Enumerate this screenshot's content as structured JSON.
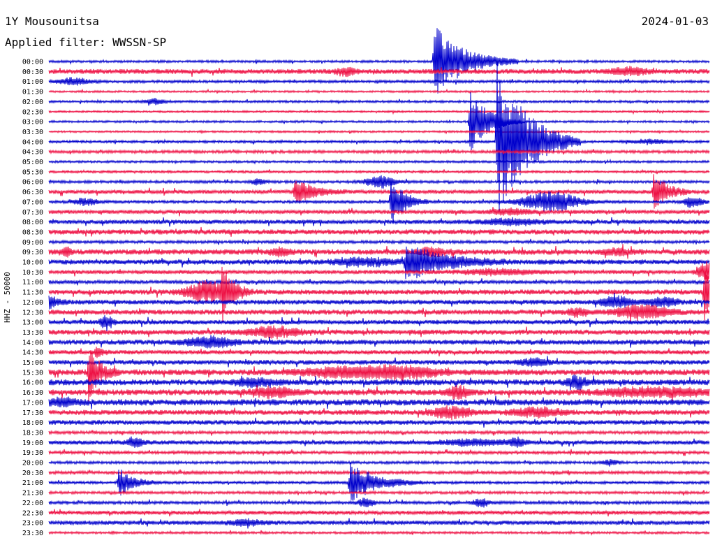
{
  "header": {
    "station": "1Y Mousounitsa",
    "date": "2024-01-03",
    "filter": "Applied filter: WWSSN-SP"
  },
  "chart_data": {
    "type": "line",
    "ylabel": "HHZ - 50000",
    "x_minutes_per_row": 30,
    "row_labels": [
      "00:00",
      "00:30",
      "01:00",
      "01:30",
      "02:00",
      "02:30",
      "03:00",
      "03:30",
      "04:00",
      "04:30",
      "05:00",
      "05:30",
      "06:00",
      "06:30",
      "07:00",
      "07:30",
      "08:00",
      "08:30",
      "09:00",
      "09:30",
      "10:00",
      "10:30",
      "11:00",
      "11:30",
      "12:00",
      "12:30",
      "13:00",
      "13:30",
      "14:00",
      "14:30",
      "15:00",
      "15:30",
      "16:00",
      "16:30",
      "17:00",
      "17:30",
      "18:00",
      "18:30",
      "19:00",
      "19:30",
      "20:00",
      "20:30",
      "21:00",
      "21:30",
      "22:00",
      "22:30",
      "23:00",
      "23:30"
    ],
    "colors": [
      "#0000cc",
      "#ee1144"
    ],
    "noise": [
      1.2,
      2.5,
      1.4,
      1.0,
      1.2,
      1.0,
      1.1,
      1.0,
      1.3,
      1.5,
      1.2,
      1.2,
      1.4,
      2.0,
      1.4,
      2.0,
      2.2,
      2.6,
      1.5,
      2.8,
      2.6,
      2.0,
      1.8,
      2.6,
      2.4,
      2.6,
      2.4,
      2.6,
      2.6,
      2.2,
      2.4,
      3.0,
      3.0,
      3.0,
      3.2,
      2.6,
      2.4,
      1.6,
      2.2,
      1.6,
      1.4,
      1.6,
      1.4,
      1.4,
      1.6,
      2.0,
      2.2,
      1.2
    ],
    "events": [
      {
        "row": 0,
        "pos": 0.583,
        "amp": 55,
        "dur": 40,
        "kind": "quake"
      },
      {
        "row": 1,
        "pos": 0.45,
        "amp": 6,
        "dur": 10,
        "kind": "burst"
      },
      {
        "row": 1,
        "pos": 0.88,
        "amp": 5,
        "dur": 20,
        "kind": "burst"
      },
      {
        "row": 2,
        "pos": 0.038,
        "amp": 5,
        "dur": 15,
        "kind": "burst"
      },
      {
        "row": 4,
        "pos": 0.16,
        "amp": 4,
        "dur": 10,
        "kind": "burst"
      },
      {
        "row": 6,
        "pos": 0.637,
        "amp": 45,
        "dur": 25,
        "kind": "quake"
      },
      {
        "row": 8,
        "pos": 0.678,
        "amp": 120,
        "dur": 40,
        "kind": "quake"
      },
      {
        "row": 8,
        "pos": 0.91,
        "amp": 3,
        "dur": 20,
        "kind": "burst"
      },
      {
        "row": 12,
        "pos": 0.317,
        "amp": 5,
        "dur": 6,
        "kind": "burst"
      },
      {
        "row": 12,
        "pos": 0.502,
        "amp": 8,
        "dur": 15,
        "kind": "burst"
      },
      {
        "row": 13,
        "pos": 0.372,
        "amp": 20,
        "dur": 25,
        "kind": "quake"
      },
      {
        "row": 13,
        "pos": 0.915,
        "amp": 30,
        "dur": 18,
        "kind": "quake"
      },
      {
        "row": 14,
        "pos": 0.055,
        "amp": 5,
        "dur": 12,
        "kind": "burst"
      },
      {
        "row": 14,
        "pos": 0.517,
        "amp": 40,
        "dur": 18,
        "kind": "quake"
      },
      {
        "row": 14,
        "pos": 0.76,
        "amp": 14,
        "dur": 30,
        "kind": "burst"
      },
      {
        "row": 14,
        "pos": 0.975,
        "amp": 8,
        "dur": 10,
        "kind": "burst"
      },
      {
        "row": 15,
        "pos": 0.7,
        "amp": 4,
        "dur": 20,
        "kind": "burst"
      },
      {
        "row": 16,
        "pos": 0.7,
        "amp": 4,
        "dur": 30,
        "kind": "burst"
      },
      {
        "row": 19,
        "pos": 0.025,
        "amp": 6,
        "dur": 6,
        "kind": "burst"
      },
      {
        "row": 19,
        "pos": 0.35,
        "amp": 5,
        "dur": 10,
        "kind": "burst"
      },
      {
        "row": 19,
        "pos": 0.58,
        "amp": 5,
        "dur": 15,
        "kind": "burst"
      },
      {
        "row": 19,
        "pos": 0.86,
        "amp": 4,
        "dur": 15,
        "kind": "burst"
      },
      {
        "row": 20,
        "pos": 0.54,
        "amp": 28,
        "dur": 50,
        "kind": "quake"
      },
      {
        "row": 20,
        "pos": 0.48,
        "amp": 5,
        "dur": 30,
        "kind": "burst"
      },
      {
        "row": 21,
        "pos": 0.68,
        "amp": 4,
        "dur": 40,
        "kind": "burst"
      },
      {
        "row": 21,
        "pos": 0.995,
        "amp": 14,
        "dur": 8,
        "kind": "burst"
      },
      {
        "row": 23,
        "pos": 0.24,
        "amp": 15,
        "dur": 20,
        "kind": "burst"
      },
      {
        "row": 23,
        "pos": 0.262,
        "amp": 40,
        "dur": 15,
        "kind": "quake"
      },
      {
        "row": 23,
        "pos": 0.992,
        "amp": 45,
        "dur": 10,
        "kind": "quake"
      },
      {
        "row": 24,
        "pos": 0.0,
        "amp": 12,
        "dur": 10,
        "kind": "quake"
      },
      {
        "row": 24,
        "pos": 0.86,
        "amp": 8,
        "dur": 15,
        "kind": "burst"
      },
      {
        "row": 24,
        "pos": 0.93,
        "amp": 6,
        "dur": 15,
        "kind": "burst"
      },
      {
        "row": 25,
        "pos": 0.8,
        "amp": 6,
        "dur": 10,
        "kind": "burst"
      },
      {
        "row": 25,
        "pos": 0.9,
        "amp": 10,
        "dur": 25,
        "kind": "burst"
      },
      {
        "row": 26,
        "pos": 0.088,
        "amp": 10,
        "dur": 6,
        "kind": "burst"
      },
      {
        "row": 27,
        "pos": 0.34,
        "amp": 8,
        "dur": 25,
        "kind": "burst"
      },
      {
        "row": 28,
        "pos": 0.245,
        "amp": 7,
        "dur": 25,
        "kind": "burst"
      },
      {
        "row": 29,
        "pos": 0.07,
        "amp": 10,
        "dur": 8,
        "kind": "quake"
      },
      {
        "row": 30,
        "pos": 0.735,
        "amp": 5,
        "dur": 15,
        "kind": "burst"
      },
      {
        "row": 31,
        "pos": 0.06,
        "amp": 40,
        "dur": 15,
        "kind": "quake"
      },
      {
        "row": 31,
        "pos": 0.44,
        "amp": 6,
        "dur": 40,
        "kind": "burst"
      },
      {
        "row": 31,
        "pos": 0.53,
        "amp": 8,
        "dur": 40,
        "kind": "burst"
      },
      {
        "row": 32,
        "pos": 0.31,
        "amp": 5,
        "dur": 20,
        "kind": "burst"
      },
      {
        "row": 32,
        "pos": 0.8,
        "amp": 9,
        "dur": 10,
        "kind": "burst"
      },
      {
        "row": 33,
        "pos": 0.34,
        "amp": 7,
        "dur": 20,
        "kind": "burst"
      },
      {
        "row": 33,
        "pos": 0.62,
        "amp": 9,
        "dur": 10,
        "kind": "burst"
      },
      {
        "row": 33,
        "pos": 0.92,
        "amp": 6,
        "dur": 50,
        "kind": "burst"
      },
      {
        "row": 34,
        "pos": 0.02,
        "amp": 5,
        "dur": 15,
        "kind": "burst"
      },
      {
        "row": 35,
        "pos": 0.61,
        "amp": 8,
        "dur": 20,
        "kind": "burst"
      },
      {
        "row": 35,
        "pos": 0.74,
        "amp": 6,
        "dur": 25,
        "kind": "burst"
      },
      {
        "row": 38,
        "pos": 0.13,
        "amp": 7,
        "dur": 8,
        "kind": "burst"
      },
      {
        "row": 38,
        "pos": 0.64,
        "amp": 4,
        "dur": 30,
        "kind": "burst"
      },
      {
        "row": 38,
        "pos": 0.71,
        "amp": 6,
        "dur": 8,
        "kind": "burst"
      },
      {
        "row": 40,
        "pos": 0.85,
        "amp": 4,
        "dur": 8,
        "kind": "burst"
      },
      {
        "row": 42,
        "pos": 0.105,
        "amp": 22,
        "dur": 20,
        "kind": "quake"
      },
      {
        "row": 42,
        "pos": 0.455,
        "amp": 30,
        "dur": 35,
        "kind": "quake"
      },
      {
        "row": 44,
        "pos": 0.48,
        "amp": 6,
        "dur": 8,
        "kind": "burst"
      },
      {
        "row": 44,
        "pos": 0.655,
        "amp": 6,
        "dur": 8,
        "kind": "burst"
      },
      {
        "row": 46,
        "pos": 0.3,
        "amp": 4,
        "dur": 15,
        "kind": "burst"
      }
    ]
  }
}
